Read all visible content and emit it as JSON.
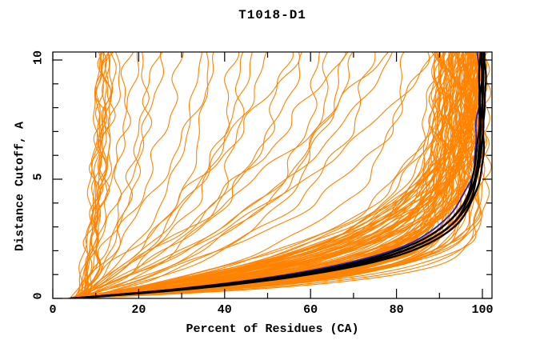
{
  "chart_data": {
    "type": "line",
    "title": "T1018-D1",
    "xlabel": "Percent of Residues (CA)",
    "ylabel": "Distance Cutoff, A",
    "xlim": [
      0,
      102.3
    ],
    "ylim": [
      0,
      10.34
    ],
    "grid": false,
    "legend": "none",
    "frame_color": "#000000",
    "background_color": "#ffffff",
    "ticks": {
      "x": {
        "major": [
          0,
          20,
          40,
          60,
          80,
          100
        ],
        "minor": [
          10,
          30,
          50,
          70,
          90
        ]
      },
      "y": {
        "major": [
          0,
          5,
          10
        ],
        "minor": [
          1,
          2,
          3,
          4,
          6,
          7,
          8,
          9
        ]
      }
    },
    "curve_model": "x(y) = q + (p-q)*(1-exp(-k*y))/(1-exp(-10*k)), y = distance cutoff 0..10, x = percent residues; curves given as [q,p,k]",
    "wiggle": {
      "freq": 1.9
    },
    "groups": [
      {
        "name": "predictions",
        "color": "#ff8300",
        "width": 1.1,
        "wiggle_amp": 0.85,
        "curves": [
          [
            7.0,
            11.0,
            0.1
          ],
          [
            7.5,
            11.6,
            0.16
          ],
          [
            8.0,
            12.1,
            0.08
          ],
          [
            6.5,
            12.6,
            0.2
          ],
          [
            7.0,
            13.2,
            0.12
          ],
          [
            8.5,
            13.6,
            0.1
          ],
          [
            6.0,
            10.6,
            0.15
          ],
          [
            7.2,
            12.3,
            0.25
          ],
          [
            7.8,
            11.9,
            0.05
          ],
          [
            6.8,
            13.9,
            0.18
          ],
          [
            8.2,
            12.9,
            0.22
          ],
          [
            7.4,
            10.9,
            0.3
          ],
          [
            6.0,
            15.5,
            0.12
          ],
          [
            7.0,
            17.5,
            0.22
          ],
          [
            5.0,
            19.5,
            0.1
          ],
          [
            8.0,
            21.5,
            0.28
          ],
          [
            6.0,
            23.5,
            0.18
          ],
          [
            7.0,
            25.5,
            0.08
          ],
          [
            5,
            30,
            0.15
          ],
          [
            6,
            34,
            0.25
          ],
          [
            4,
            38,
            0.1
          ],
          [
            7,
            42,
            0.3
          ],
          [
            5,
            46,
            0.2
          ],
          [
            6,
            50,
            0.12
          ],
          [
            4,
            54,
            0.28
          ],
          [
            7,
            58,
            0.18
          ],
          [
            5,
            62,
            0.35
          ],
          [
            6,
            66,
            0.1
          ],
          [
            4,
            70,
            0.22
          ],
          [
            7,
            74,
            0.3
          ],
          [
            5,
            78,
            0.15
          ],
          [
            6,
            82,
            0.4
          ],
          [
            4,
            86,
            0.25
          ],
          [
            5,
            88,
            0.12
          ],
          [
            6,
            44,
            0.45
          ],
          [
            5,
            56,
            0.06
          ],
          [
            7,
            64,
            0.4
          ],
          [
            4,
            76,
            0.08
          ],
          [
            6,
            36,
            0.35
          ],
          [
            5,
            68,
            0.28
          ],
          [
            3.5,
            89.2,
            0.42
          ],
          [
            4.5,
            89.2,
            0.55
          ],
          [
            5.5,
            89.2,
            0.72
          ],
          [
            6.5,
            89.2,
            0.9
          ],
          [
            4.0,
            89.2,
            1.15
          ],
          [
            3.8,
            90.1,
            0.45
          ],
          [
            4.8,
            90.1,
            0.58
          ],
          [
            5.2,
            90.1,
            0.68
          ],
          [
            6.2,
            90.1,
            0.95
          ],
          [
            4.2,
            90.1,
            1.1
          ],
          [
            3.5,
            91.0,
            0.4
          ],
          [
            4.5,
            91.0,
            0.55
          ],
          [
            5.5,
            91.0,
            0.75
          ],
          [
            6.5,
            91.0,
            0.88
          ],
          [
            4.0,
            91.0,
            1.2
          ],
          [
            3.6,
            91.8,
            0.48
          ],
          [
            4.6,
            91.8,
            0.6
          ],
          [
            5.6,
            91.8,
            0.7
          ],
          [
            6.6,
            91.8,
            0.92
          ],
          [
            4.1,
            91.8,
            1.12
          ],
          [
            3.5,
            92.6,
            0.42
          ],
          [
            4.5,
            92.6,
            0.56
          ],
          [
            5.5,
            92.6,
            0.74
          ],
          [
            6.5,
            92.6,
            0.9
          ],
          [
            4.0,
            92.6,
            1.18
          ],
          [
            3.7,
            93.3,
            0.46
          ],
          [
            4.7,
            93.3,
            0.58
          ],
          [
            5.7,
            93.3,
            0.72
          ],
          [
            6.3,
            93.3,
            0.94
          ],
          [
            4.2,
            93.3,
            1.08
          ],
          [
            3.5,
            94.0,
            0.44
          ],
          [
            4.5,
            94.0,
            0.57
          ],
          [
            5.5,
            94.0,
            0.76
          ],
          [
            6.5,
            94.0,
            0.9
          ],
          [
            4.0,
            94.0,
            1.15
          ],
          [
            3.6,
            94.7,
            0.43
          ],
          [
            4.6,
            94.7,
            0.59
          ],
          [
            5.6,
            94.7,
            0.71
          ],
          [
            6.6,
            94.7,
            0.93
          ],
          [
            4.1,
            94.7,
            1.22
          ],
          [
            3.5,
            95.3,
            0.47
          ],
          [
            4.5,
            95.3,
            0.55
          ],
          [
            5.5,
            95.3,
            0.73
          ],
          [
            6.5,
            95.3,
            0.89
          ],
          [
            4.0,
            95.3,
            1.1
          ],
          [
            3.8,
            95.9,
            0.41
          ],
          [
            4.8,
            95.9,
            0.6
          ],
          [
            5.2,
            95.9,
            0.77
          ],
          [
            6.2,
            95.9,
            0.91
          ],
          [
            4.2,
            95.9,
            1.17
          ],
          [
            3.5,
            96.4,
            0.45
          ],
          [
            4.5,
            96.4,
            0.56
          ],
          [
            5.5,
            96.4,
            0.7
          ],
          [
            6.5,
            96.4,
            0.95
          ],
          [
            4.0,
            96.4,
            1.12
          ],
          [
            3.6,
            96.9,
            0.43
          ],
          [
            4.6,
            96.9,
            0.58
          ],
          [
            5.6,
            96.9,
            0.74
          ],
          [
            6.4,
            96.9,
            0.88
          ],
          [
            4.1,
            96.9,
            1.2
          ],
          [
            3.5,
            97.4,
            0.46
          ],
          [
            4.5,
            97.4,
            0.55
          ],
          [
            5.5,
            97.4,
            0.72
          ],
          [
            6.5,
            97.4,
            0.92
          ],
          [
            4.0,
            97.4,
            1.14
          ],
          [
            3.7,
            97.8,
            0.42
          ],
          [
            4.7,
            97.8,
            0.59
          ],
          [
            5.3,
            97.8,
            0.75
          ],
          [
            6.3,
            97.8,
            0.9
          ],
          [
            4.2,
            97.8,
            1.16
          ],
          [
            3.5,
            98.2,
            0.44
          ],
          [
            4.5,
            98.2,
            0.57
          ],
          [
            5.5,
            98.2,
            0.71
          ],
          [
            6.5,
            98.2,
            0.93
          ],
          [
            4.0,
            98.2,
            1.1
          ],
          [
            3.6,
            98.6,
            0.47
          ],
          [
            4.6,
            98.6,
            0.56
          ],
          [
            5.6,
            98.6,
            0.73
          ],
          [
            6.4,
            98.6,
            0.89
          ],
          [
            4.1,
            98.6,
            1.18
          ],
          [
            3.5,
            99.0,
            0.43
          ],
          [
            4.5,
            99.0,
            0.58
          ],
          [
            5.5,
            99.0,
            0.7
          ],
          [
            6.5,
            99.0,
            0.91
          ],
          [
            4.0,
            99.0,
            1.13
          ],
          [
            3.6,
            99.4,
            0.45
          ],
          [
            4.6,
            99.4,
            0.55
          ],
          [
            5.6,
            99.4,
            0.74
          ],
          [
            6.4,
            99.4,
            0.94
          ],
          [
            4.1,
            99.4,
            1.21
          ],
          [
            3.5,
            99.8,
            0.44
          ],
          [
            4.5,
            99.8,
            0.57
          ],
          [
            5.5,
            99.8,
            0.72
          ],
          [
            6.5,
            99.8,
            0.9
          ],
          [
            4.0,
            99.8,
            1.15
          ],
          [
            4,
            100.3,
            1.3
          ],
          [
            5,
            100.6,
            1.5
          ],
          [
            4,
            100.1,
            1.2
          ],
          [
            5,
            99.9,
            1.4
          ],
          [
            4.5,
            97.0,
            0.62
          ],
          [
            5.5,
            98.0,
            0.52
          ],
          [
            4,
            96.5,
            0.8
          ],
          [
            6,
            98.8,
            0.48
          ]
        ]
      },
      {
        "name": "model-highlight",
        "color": "#2222cc",
        "width": 1.8,
        "wiggle_amp": 0.22,
        "curves": [
          [
            4,
            99.2,
            0.76
          ]
        ]
      },
      {
        "name": "best-models",
        "color": "#000000",
        "width": 2.3,
        "wiggle_amp": 0.15,
        "curves": [
          [
            4.0,
            99.4,
            0.8
          ],
          [
            4.2,
            99.7,
            0.84
          ],
          [
            4.0,
            100.0,
            0.78
          ],
          [
            4.5,
            100.3,
            0.82
          ],
          [
            4.3,
            100.6,
            0.86
          ]
        ]
      }
    ]
  }
}
